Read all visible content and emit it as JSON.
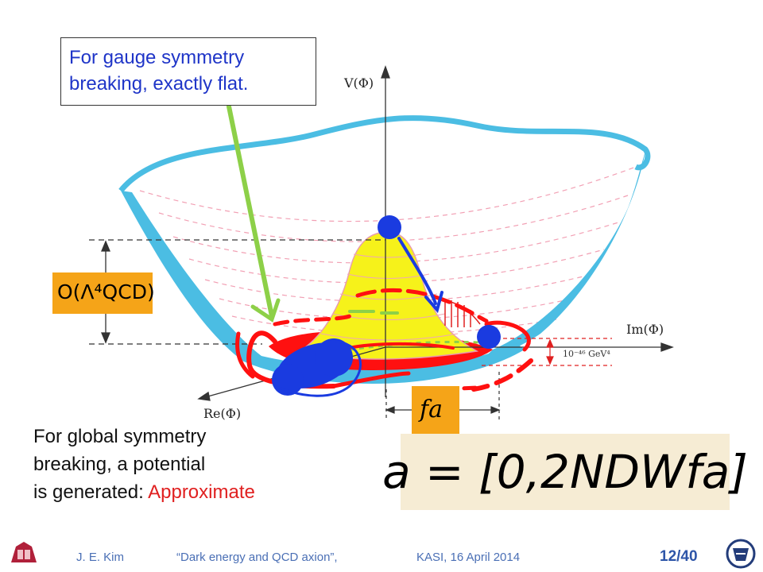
{
  "gauge_note": {
    "line1": "For gauge symmetry",
    "line2": "breaking, exactly flat."
  },
  "global_note": {
    "line1": "For global symmetry",
    "line2": "breaking, a potential",
    "line3_prefix": "is generated: ",
    "line3_highlight": "Approximate"
  },
  "labels": {
    "v_axis": "V(Φ)",
    "im_axis": "Im(Φ)",
    "re_axis": "Re(Φ)",
    "energy_scale": "10⁻⁴⁶ GeV⁴",
    "lambda_box": "O(Λ⁴QCD)",
    "fa_box": "fa",
    "formula": "a = [0,2NDWfa]"
  },
  "footer": {
    "author": "J. E. Kim",
    "title": "“Dark energy and QCD axion”,",
    "venue": "KASI,  16 April  2014",
    "page": "12/40"
  },
  "colors": {
    "bowl_blue": "#4bbde3",
    "peak_yellow": "#f6f21a",
    "ring_red": "#ff1010",
    "marker_blue": "#1a3be0",
    "arrow_green": "#8dd048",
    "highlight_orange": "#f5a418"
  }
}
